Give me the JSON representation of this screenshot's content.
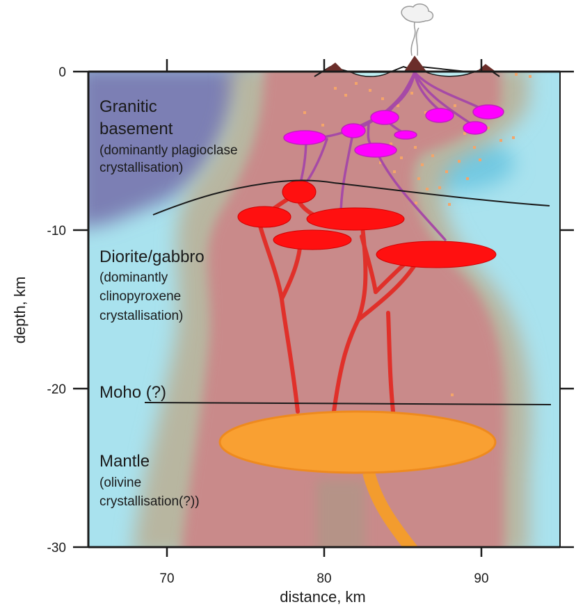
{
  "x_axis": {
    "title": "distance, km",
    "ticks": [
      {
        "value": 70,
        "label": "70"
      },
      {
        "value": 80,
        "label": "80"
      },
      {
        "value": 90,
        "label": "90"
      }
    ],
    "range": [
      65,
      95
    ]
  },
  "y_axis": {
    "title": "depth, km",
    "ticks": [
      {
        "value": 0,
        "label": "0"
      },
      {
        "value": -10,
        "label": "-10"
      },
      {
        "value": -20,
        "label": "-20"
      },
      {
        "value": -30,
        "label": "-30"
      }
    ],
    "range": [
      -30,
      0
    ]
  },
  "layers": {
    "granitic": {
      "title_line1": "Granitic",
      "title_line2": "basement",
      "note_line1": "(dominantly plagioclase",
      "note_line2": "crystallisation)"
    },
    "diorite": {
      "title": "Diorite/gabbro",
      "note_line1": "(dominantly",
      "note_line2": "clinopyroxene",
      "note_line3": "crystallisation)"
    },
    "moho": {
      "title": "Moho (?)"
    },
    "mantle": {
      "title": "Mantle",
      "note_line1": "(olivine",
      "note_line2": "crystallisation(?))"
    }
  },
  "colors": {
    "background_cyan": "#a9e2ee",
    "basement_purple": "#7c7fb4",
    "crust_pink": "#c98a8a",
    "halo_grey": "#b8b6a0",
    "shallow_magma": "#ff00ff",
    "shallow_conduit": "#a64aa6",
    "mid_magma": "#ff1010",
    "mid_conduit": "#e0302a",
    "deep_magma": "#f9a032",
    "deep_outline": "#ee8a1e",
    "volcano": "#6b2e2a"
  }
}
